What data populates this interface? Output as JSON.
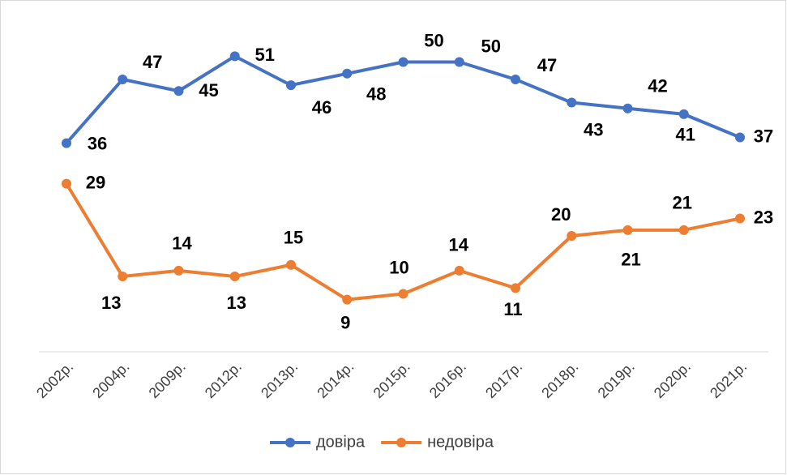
{
  "chart_data": {
    "type": "line",
    "categories": [
      "2002р.",
      "2004р.",
      "2009р.",
      "2012р.",
      "2013р.",
      "2014р.",
      "2015р.",
      "2016р.",
      "2017р.",
      "2018р.",
      "2019р.",
      "2020р.",
      "2021р."
    ],
    "series": [
      {
        "name": "довіра",
        "color": "#4472c4",
        "values": [
          36,
          47,
          45,
          51,
          46,
          48,
          50,
          50,
          47,
          43,
          42,
          41,
          37
        ]
      },
      {
        "name": "недовіра",
        "color": "#ed7d31",
        "values": [
          29,
          13,
          14,
          13,
          15,
          9,
          10,
          14,
          11,
          20,
          21,
          21,
          23
        ]
      }
    ],
    "ylim": [
      0,
      60
    ],
    "legend": "bottom"
  }
}
